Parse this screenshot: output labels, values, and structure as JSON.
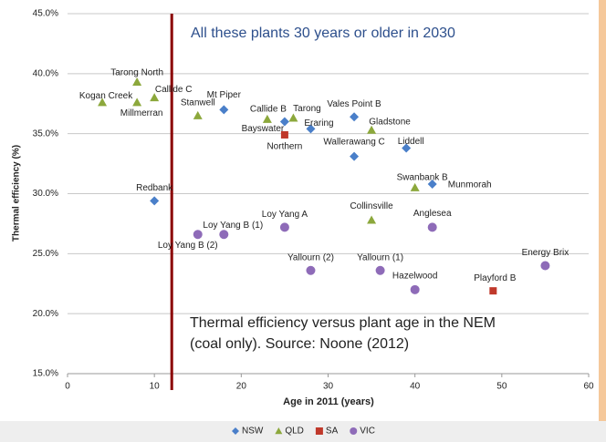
{
  "chart_data": {
    "type": "scatter",
    "xlabel": "Age in 2011 (years)",
    "ylabel": "Thermal efficiency (%)",
    "note_top": "All these plants 30 years or older in 2030",
    "note_bottom": [
      "Thermal efficiency versus plant age in the NEM",
      "(coal only). Source: Noone (2012)"
    ],
    "vline": 12,
    "vline_color": "#8b0000",
    "xlim": [
      0,
      60
    ],
    "xticks": [
      0,
      10,
      20,
      30,
      40,
      50,
      60
    ],
    "ylim": [
      15,
      45
    ],
    "yticks": [
      {
        "value": 15,
        "label": "15.0%"
      },
      {
        "value": 20,
        "label": "20.0%"
      },
      {
        "value": 25,
        "label": "25.0%"
      },
      {
        "value": 30,
        "label": "30.0%"
      },
      {
        "value": 35,
        "label": "35.0%"
      },
      {
        "value": 40,
        "label": "40.0%"
      },
      {
        "value": 45,
        "label": "45.0%"
      }
    ],
    "grid": true,
    "legend": "bottom",
    "series": [
      {
        "name": "NSW",
        "color": "#4a7fc9",
        "marker": "diamond",
        "labels": [
          "Mt Piper",
          "Bayswater",
          "Eraring",
          "Vales Point B",
          "Wallerawang C",
          "Liddell",
          "Munmorah",
          "Redbank"
        ],
        "x": [
          18,
          25,
          28,
          33,
          33,
          39,
          42,
          10
        ],
        "values": [
          37.0,
          36.0,
          35.4,
          36.4,
          33.1,
          33.8,
          30.8,
          29.4
        ]
      },
      {
        "name": "QLD",
        "color": "#8ca83c",
        "marker": "triangle",
        "labels": [
          "Tarong North",
          "Kogan Creek",
          "Callide C",
          "Millmerran",
          "Stanwell",
          "Callide B",
          "Tarong",
          "Gladstone",
          "Swanbank B",
          "Collinsville"
        ],
        "x": [
          8,
          4,
          10,
          8,
          15,
          23,
          26,
          35,
          40,
          35
        ],
        "values": [
          39.3,
          37.6,
          38.0,
          37.6,
          36.5,
          36.2,
          36.3,
          35.3,
          30.5,
          27.8
        ]
      },
      {
        "name": "SA",
        "color": "#c0392b",
        "marker": "square",
        "labels": [
          "Northern",
          "Playford B"
        ],
        "x": [
          25,
          49
        ],
        "values": [
          34.9,
          21.9
        ]
      },
      {
        "name": "VIC",
        "color": "#8e6bb8",
        "marker": "circle",
        "labels": [
          "Loy Yang B (1)",
          "Loy Yang B (2)",
          "Loy Yang A",
          "Anglesea",
          "Yallourn (2)",
          "Yallourn (1)",
          "Hazelwood",
          "Energy Brix"
        ],
        "x": [
          18,
          15,
          25,
          42,
          28,
          36,
          40,
          55
        ],
        "values": [
          26.6,
          26.6,
          27.2,
          27.2,
          23.6,
          23.6,
          22.0,
          24.0
        ]
      }
    ]
  }
}
